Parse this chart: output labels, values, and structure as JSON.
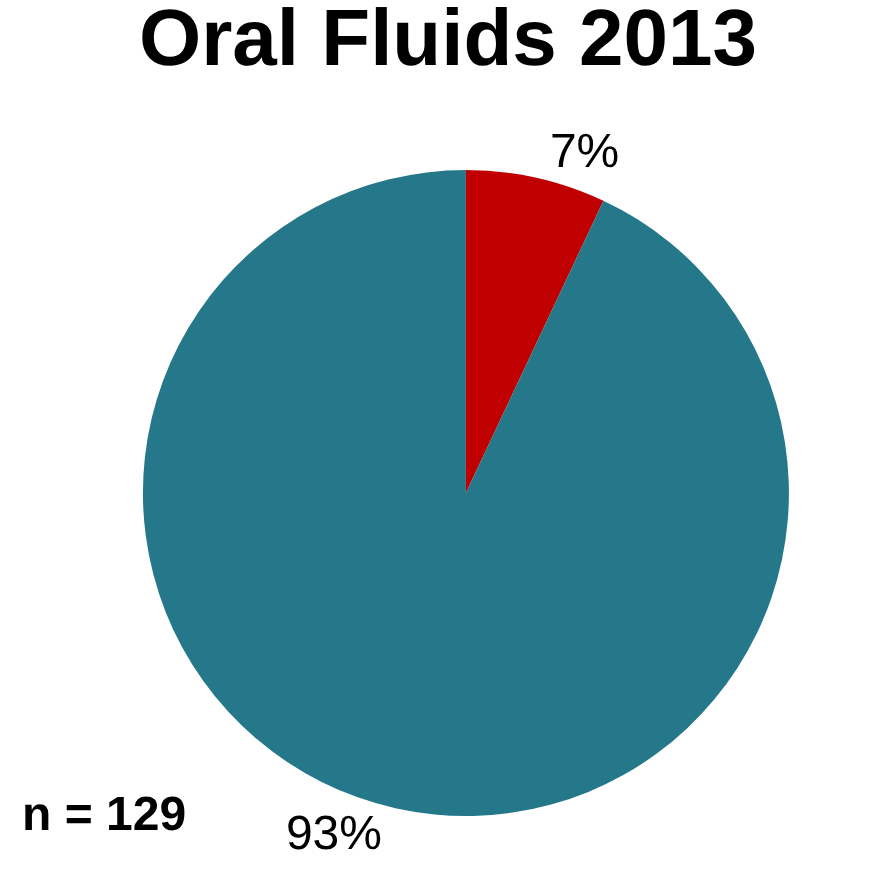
{
  "chart_data": {
    "type": "pie",
    "title": "Oral Fluids 2013",
    "categories": [
      null,
      null
    ],
    "values": [
      7,
      93
    ],
    "value_labels": [
      "7%",
      "93%"
    ],
    "colors": [
      "#c00000",
      "#24788a"
    ],
    "legend": false,
    "annotations": [
      "n = 129"
    ]
  }
}
